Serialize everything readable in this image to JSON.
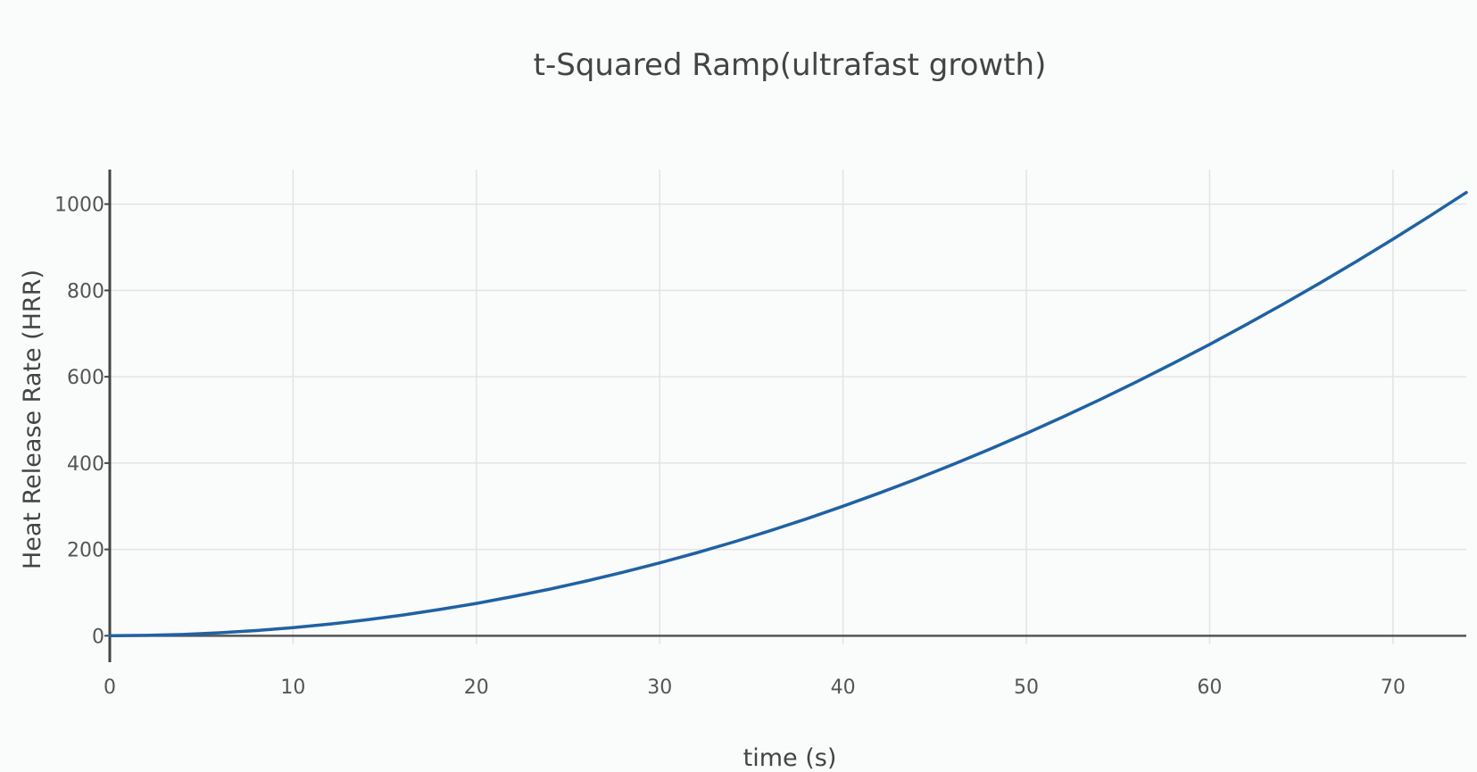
{
  "chart_data": {
    "type": "line",
    "title": "t-Squared Ramp(ultrafast growth)",
    "xlabel": "time (s)",
    "ylabel": "Heat Release Rate (HRR)",
    "xlim": [
      0,
      74
    ],
    "ylim": [
      -20,
      1080
    ],
    "x_ticks": [
      {
        "value": 0,
        "label": "0"
      },
      {
        "value": 10,
        "label": "10"
      },
      {
        "value": 20,
        "label": "20"
      },
      {
        "value": 30,
        "label": "30"
      },
      {
        "value": 40,
        "label": "40"
      },
      {
        "value": 50,
        "label": "50"
      },
      {
        "value": 60,
        "label": "60"
      },
      {
        "value": 70,
        "label": "70"
      }
    ],
    "y_ticks": [
      {
        "value": 0,
        "label": "0"
      },
      {
        "value": 200,
        "label": "200"
      },
      {
        "value": 400,
        "label": "400"
      },
      {
        "value": 600,
        "label": "600"
      },
      {
        "value": 800,
        "label": "800"
      },
      {
        "value": 1000,
        "label": "1000"
      }
    ],
    "grid": true,
    "series": [
      {
        "name": "HRR",
        "color": "#1f62a3",
        "x": [
          0,
          2,
          4,
          6,
          8,
          10,
          12,
          14,
          16,
          18,
          20,
          22,
          24,
          26,
          28,
          30,
          32,
          34,
          36,
          38,
          40,
          42,
          44,
          46,
          48,
          50,
          52,
          54,
          56,
          58,
          60,
          62,
          64,
          66,
          68,
          70,
          72,
          74
        ],
        "values": [
          0,
          0.8,
          3,
          6.8,
          12,
          18.8,
          27,
          36.8,
          48,
          60.8,
          75,
          90.8,
          108,
          126.8,
          147,
          168.8,
          192,
          216.8,
          243,
          270.8,
          300,
          330.8,
          363,
          396.8,
          432,
          468.8,
          507,
          546.8,
          588,
          630.8,
          675,
          720.8,
          768,
          816.8,
          867,
          918.8,
          972,
          1026.8
        ]
      }
    ]
  }
}
